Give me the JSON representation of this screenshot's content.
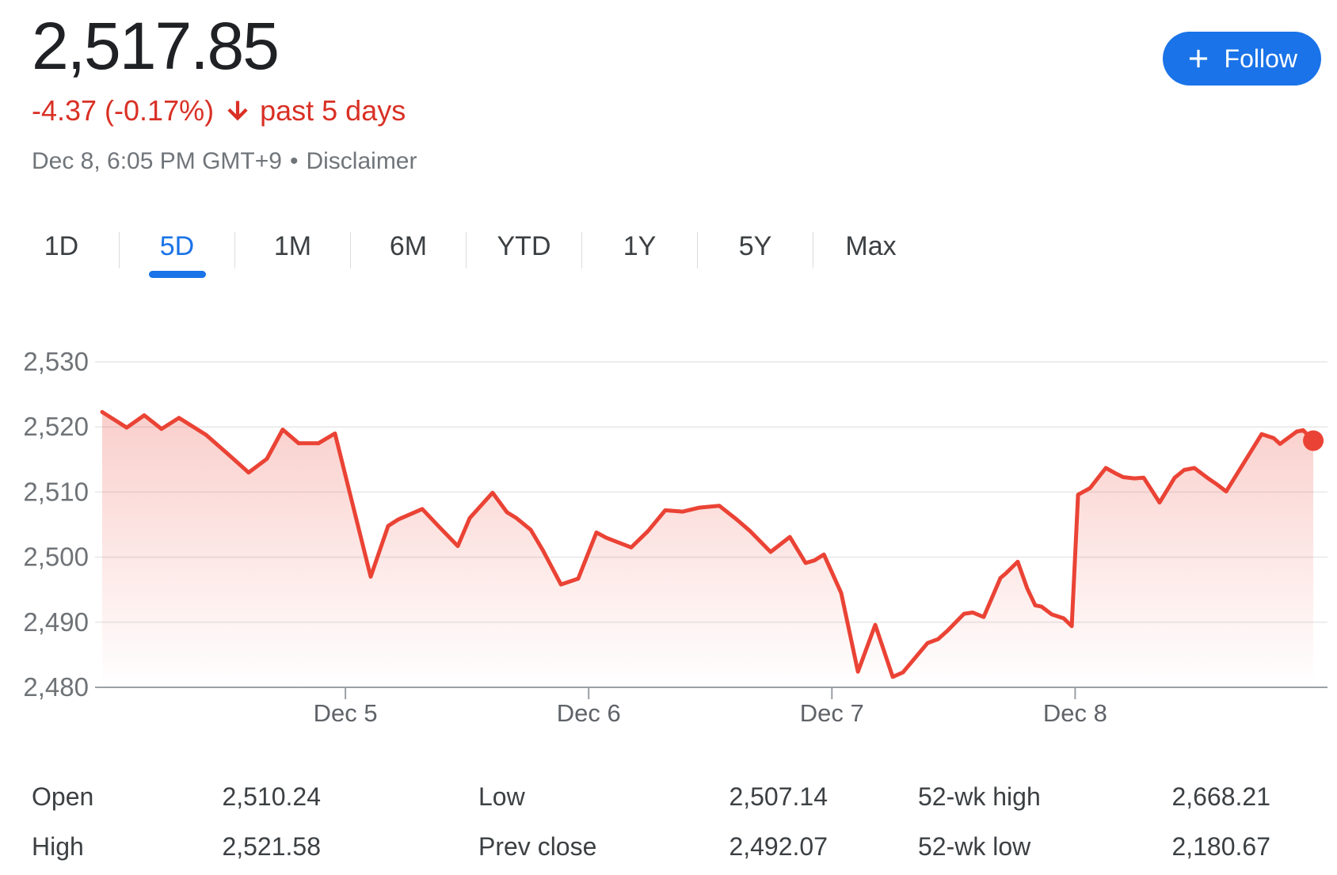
{
  "header": {
    "price": "2,517.85",
    "change_value": "-4.37 (-0.17%)",
    "change_direction": "down",
    "change_period": "past 5 days",
    "timestamp": "Dec 8, 6:05 PM GMT+9",
    "separator": "•",
    "disclaimer_label": "Disclaimer",
    "follow_button": {
      "label": "Follow",
      "icon": "plus"
    }
  },
  "range_tabs": {
    "items": [
      {
        "label": "1D",
        "active": false
      },
      {
        "label": "5D",
        "active": true
      },
      {
        "label": "1M",
        "active": false
      },
      {
        "label": "6M",
        "active": false
      },
      {
        "label": "YTD",
        "active": false
      },
      {
        "label": "1Y",
        "active": false
      },
      {
        "label": "5Y",
        "active": false
      },
      {
        "label": "Max",
        "active": false
      }
    ]
  },
  "chart_data": {
    "type": "line",
    "title": "5 day price chart",
    "line_color": "#ea4335",
    "area_gradient_top": "rgba(234,67,53,0.30)",
    "area_gradient_bottom": "rgba(234,67,53,0)",
    "grid_color": "#ececec",
    "baseline_color": "#9aa0a6",
    "y_label_color": "#6f7377",
    "x_label_color": "#5f6368",
    "ylim": [
      2480,
      2530
    ],
    "xlim": [
      0,
      5
    ],
    "y_ticks": [
      {
        "v": 2530,
        "label": "2,530"
      },
      {
        "v": 2520,
        "label": "2,520"
      },
      {
        "v": 2510,
        "label": "2,510"
      },
      {
        "v": 2500,
        "label": "2,500"
      },
      {
        "v": 2490,
        "label": "2,490"
      },
      {
        "v": 2480,
        "label": "2,480"
      }
    ],
    "x_ticks": [
      {
        "t": 1,
        "label": "Dec 5"
      },
      {
        "t": 2,
        "label": "Dec 6"
      },
      {
        "t": 3,
        "label": "Dec 7"
      },
      {
        "t": 4,
        "label": "Dec 8"
      }
    ],
    "end_dot": true,
    "series": [
      {
        "name": "price",
        "points": [
          [
            0.0,
            2522.3
          ],
          [
            0.101,
            2519.9
          ],
          [
            0.173,
            2521.8
          ],
          [
            0.244,
            2519.7
          ],
          [
            0.316,
            2521.4
          ],
          [
            0.427,
            2518.8
          ],
          [
            0.515,
            2515.9
          ],
          [
            0.602,
            2513.0
          ],
          [
            0.677,
            2515.1
          ],
          [
            0.742,
            2519.6
          ],
          [
            0.808,
            2517.5
          ],
          [
            0.889,
            2517.5
          ],
          [
            0.957,
            2519.0
          ],
          [
            1.104,
            2497.0
          ],
          [
            1.176,
            2504.8
          ],
          [
            1.218,
            2505.8
          ],
          [
            1.316,
            2507.4
          ],
          [
            1.387,
            2504.6
          ],
          [
            1.462,
            2501.7
          ],
          [
            1.511,
            2506.0
          ],
          [
            1.605,
            2509.9
          ],
          [
            1.664,
            2506.9
          ],
          [
            1.703,
            2506.0
          ],
          [
            1.762,
            2504.2
          ],
          [
            1.811,
            2501.1
          ],
          [
            1.886,
            2495.8
          ],
          [
            1.957,
            2496.7
          ],
          [
            2.032,
            2503.8
          ],
          [
            2.071,
            2503.0
          ],
          [
            2.175,
            2501.5
          ],
          [
            2.244,
            2504.0
          ],
          [
            2.315,
            2507.2
          ],
          [
            2.387,
            2507.0
          ],
          [
            2.455,
            2507.6
          ],
          [
            2.537,
            2507.9
          ],
          [
            2.608,
            2505.8
          ],
          [
            2.664,
            2504.0
          ],
          [
            2.748,
            2500.8
          ],
          [
            2.827,
            2503.1
          ],
          [
            2.892,
            2499.1
          ],
          [
            2.928,
            2499.5
          ],
          [
            2.967,
            2500.4
          ],
          [
            3.038,
            2494.5
          ],
          [
            3.107,
            2482.4
          ],
          [
            3.178,
            2489.6
          ],
          [
            3.25,
            2481.6
          ],
          [
            3.292,
            2482.3
          ],
          [
            3.393,
            2486.8
          ],
          [
            3.436,
            2487.4
          ],
          [
            3.475,
            2488.7
          ],
          [
            3.543,
            2491.3
          ],
          [
            3.579,
            2491.5
          ],
          [
            3.624,
            2490.8
          ],
          [
            3.693,
            2496.8
          ],
          [
            3.715,
            2497.5
          ],
          [
            3.764,
            2499.3
          ],
          [
            3.803,
            2495.2
          ],
          [
            3.836,
            2492.6
          ],
          [
            3.862,
            2492.4
          ],
          [
            3.904,
            2491.2
          ],
          [
            3.953,
            2490.6
          ],
          [
            3.986,
            2489.4
          ],
          [
            4.012,
            2509.6
          ],
          [
            4.061,
            2510.6
          ],
          [
            4.126,
            2513.7
          ],
          [
            4.165,
            2512.9
          ],
          [
            4.197,
            2512.3
          ],
          [
            4.243,
            2512.1
          ],
          [
            4.282,
            2512.2
          ],
          [
            4.347,
            2508.4
          ],
          [
            4.409,
            2512.2
          ],
          [
            4.448,
            2513.4
          ],
          [
            4.49,
            2513.7
          ],
          [
            4.543,
            2512.2
          ],
          [
            4.582,
            2511.2
          ],
          [
            4.621,
            2510.1
          ],
          [
            4.767,
            2518.9
          ],
          [
            4.816,
            2518.3
          ],
          [
            4.842,
            2517.4
          ],
          [
            4.911,
            2519.3
          ],
          [
            4.937,
            2519.5
          ],
          [
            4.979,
            2517.9
          ]
        ]
      }
    ]
  },
  "stats": {
    "columns": [
      [
        {
          "label": "Open",
          "value": "2,510.24"
        },
        {
          "label": "High",
          "value": "2,521.58"
        }
      ],
      [
        {
          "label": "Low",
          "value": "2,507.14"
        },
        {
          "label": "Prev close",
          "value": "2,492.07"
        }
      ],
      [
        {
          "label": "52-wk high",
          "value": "2,668.21"
        },
        {
          "label": "52-wk low",
          "value": "2,180.67"
        }
      ]
    ]
  }
}
